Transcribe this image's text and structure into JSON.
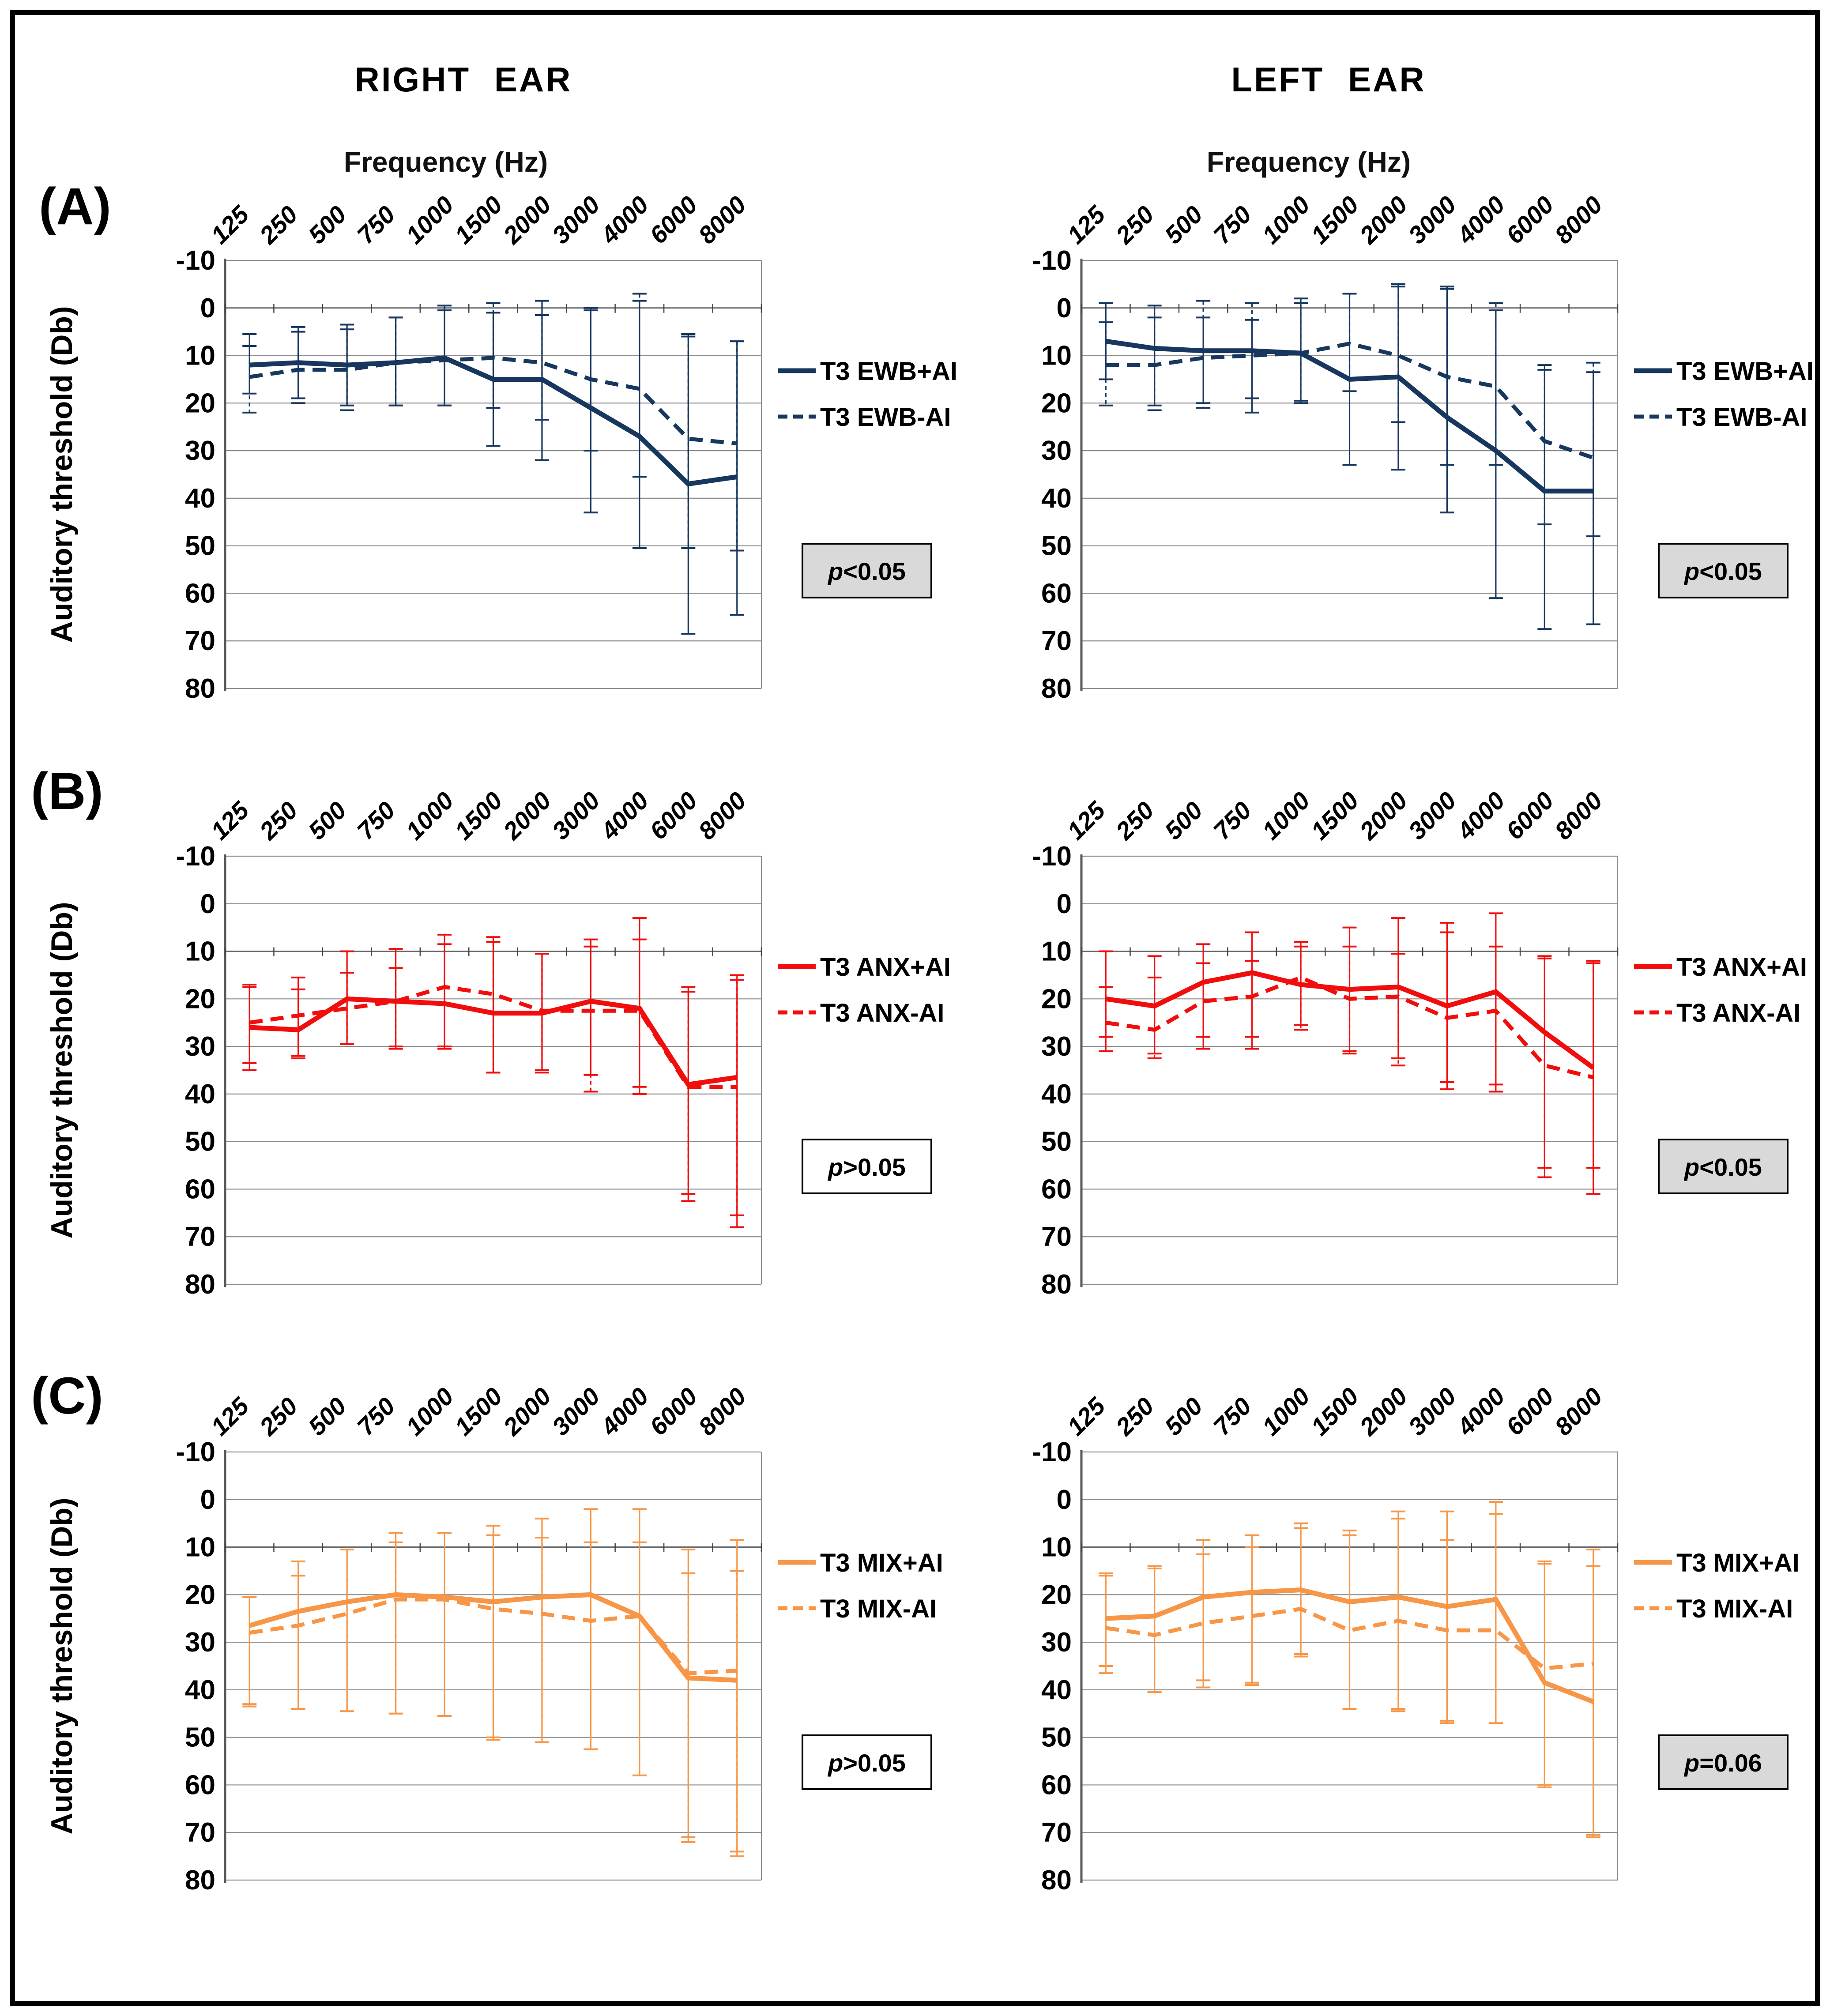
{
  "header": {
    "right_title": "RIGHT EAR",
    "left_title": "LEFT EAR"
  },
  "panel_labels": [
    "(A)",
    "(B)",
    "(C)"
  ],
  "colors": {
    "navy": "#17375E",
    "red": "#F20D0D",
    "orange": "#F79646",
    "grid": "#8C8C8C",
    "axis": "#595959",
    "pbox_shaded": "#D9D9D9",
    "pbox_plain": "#FFFFFF",
    "text": "#000000"
  },
  "chart_data": {
    "type": "line",
    "x_title": "Frequency (Hz)",
    "y_title": "Auditory threshold (Db)",
    "x_categories": [
      "125",
      "250",
      "500",
      "750",
      "1000",
      "1500",
      "2000",
      "3000",
      "4000",
      "6000",
      "8000"
    ],
    "y_ticks": [
      -10,
      0,
      10,
      20,
      30,
      40,
      50,
      60,
      70,
      80
    ],
    "ylim": [
      -10,
      80
    ],
    "y_axis_inverted": true,
    "grid": true,
    "legend_position": "right",
    "panels": [
      {
        "id": "a-right",
        "row": "A",
        "ear": "right",
        "color_key": "navy",
        "axis_cross": 0,
        "p_value": {
          "prefix": "p",
          "text": "<0.05",
          "shaded": true
        },
        "series": [
          {
            "name": "T3 EWB+AI",
            "line": "solid",
            "values": [
              12,
              11.5,
              12,
              11.5,
              10.5,
              15,
              15,
              21,
              27,
              37,
              35.5
            ],
            "err_low": [
              5.5,
              4,
              4.5,
              2,
              0.5,
              1,
              -1.5,
              0,
              -1.5,
              5.5,
              7
            ],
            "err_high": [
              18,
              19,
              20.5,
              20.5,
              20.5,
              29,
              32,
              43,
              50.5,
              68.5,
              64.5
            ]
          },
          {
            "name": "T3 EWB-AI",
            "line": "dashed",
            "values": [
              14.5,
              13,
              13,
              11.5,
              11,
              10.5,
              11.5,
              15,
              17,
              27.5,
              28.5
            ],
            "err_low": [
              8,
              5,
              3.5,
              2,
              -0.5,
              -1,
              1.5,
              0.5,
              -3,
              6,
              7
            ],
            "err_high": [
              22,
              20,
              21.5,
              20.5,
              20.5,
              21,
              23.5,
              30,
              35.5,
              50.5,
              51
            ]
          }
        ]
      },
      {
        "id": "a-left",
        "row": "A",
        "ear": "left",
        "color_key": "navy",
        "axis_cross": 0,
        "p_value": {
          "prefix": "p",
          "text": "<0.05",
          "shaded": true
        },
        "series": [
          {
            "name": "T3 EWB+AI",
            "line": "solid",
            "values": [
              7,
              8.5,
              9,
              9,
              9.5,
              15,
              14.5,
              23,
              30,
              38.5,
              38.5
            ],
            "err_low": [
              -1,
              -0.5,
              2,
              2.5,
              -1,
              -3,
              -5,
              -4,
              0.5,
              13,
              13.5
            ],
            "err_high": [
              15,
              20.5,
              20,
              22,
              20,
              33,
              34,
              43,
              61,
              67.5,
              66.5
            ]
          },
          {
            "name": "T3 EWB-AI",
            "line": "dashed",
            "values": [
              12,
              12,
              10.5,
              10,
              9.5,
              7.5,
              10,
              14.5,
              16.5,
              28,
              31.5
            ],
            "err_low": [
              3,
              2,
              -1.5,
              -1,
              -2,
              -3,
              -4.5,
              -4.5,
              -1,
              12,
              11.5
            ],
            "err_high": [
              20.5,
              21.5,
              21,
              19,
              19.5,
              17.5,
              24,
              33,
              33,
              45.5,
              48
            ]
          }
        ]
      },
      {
        "id": "b-right",
        "row": "B",
        "ear": "right",
        "color_key": "red",
        "axis_cross": 10,
        "p_value": {
          "prefix": "p",
          "text": ">0.05",
          "shaded": false
        },
        "series": [
          {
            "name": "T3 ANX+AI",
            "line": "solid",
            "values": [
              26,
              26.5,
              20,
              20.5,
              21,
              23,
              23,
              20.5,
              22,
              38,
              36.5
            ],
            "err_low": [
              17,
              15.5,
              10,
              9.5,
              6.5,
              7,
              10.5,
              7.5,
              3,
              17.5,
              15
            ],
            "err_high": [
              35,
              32,
              29.5,
              30,
              30.5,
              35.5,
              35,
              36,
              40,
              62.5,
              68
            ]
          },
          {
            "name": "T3 ANX-AI",
            "line": "dashed",
            "values": [
              25,
              23.5,
              22,
              20.5,
              17.5,
              19,
              22.5,
              22.5,
              22.5,
              38.5,
              38.5
            ],
            "err_low": [
              17.5,
              18,
              14.5,
              13.5,
              8.5,
              8,
              10.5,
              9,
              7.5,
              18.5,
              16
            ],
            "err_high": [
              33.5,
              32.5,
              29.5,
              30.5,
              30,
              35.5,
              35.5,
              39.5,
              38.5,
              61,
              65.5
            ]
          }
        ]
      },
      {
        "id": "b-left",
        "row": "B",
        "ear": "left",
        "color_key": "red",
        "axis_cross": 10,
        "p_value": {
          "prefix": "p",
          "text": "<0.05",
          "shaded": true
        },
        "series": [
          {
            "name": "T3 ANX+AI",
            "line": "solid",
            "values": [
              20,
              21.5,
              16.5,
              14.5,
              17,
              18,
              17.5,
              21.5,
              18.5,
              27,
              34.5
            ],
            "err_low": [
              10,
              11,
              8.5,
              6,
              8,
              5,
              3,
              4,
              2,
              11,
              12
            ],
            "err_high": [
              31,
              31.5,
              30.5,
              30.5,
              25.5,
              31.5,
              32.5,
              39,
              39.5,
              57.5,
              61
            ]
          },
          {
            "name": "T3 ANX-AI",
            "line": "dashed",
            "values": [
              25,
              26.5,
              20.5,
              19.5,
              15.5,
              20,
              19.5,
              24,
              22.5,
              34,
              36.5
            ],
            "err_low": [
              17.5,
              15.5,
              12.5,
              12,
              9,
              9,
              10.5,
              6,
              9,
              11.5,
              12.5
            ],
            "err_high": [
              28,
              32.5,
              28,
              28,
              26.5,
              31,
              34,
              37.5,
              38,
              55.5,
              55.5
            ]
          }
        ]
      },
      {
        "id": "c-right",
        "row": "C",
        "ear": "right",
        "color_key": "orange",
        "axis_cross": 10,
        "p_value": {
          "prefix": "p",
          "text": ">0.05",
          "shaded": false
        },
        "series": [
          {
            "name": "T3 MIX+AI",
            "line": "solid",
            "values": [
              26.5,
              23.5,
              21.5,
              20,
              20.5,
              21.5,
              20.5,
              20,
              24.5,
              37.5,
              38
            ],
            "err_low": [
              20.5,
              13,
              10.5,
              7,
              7,
              5.5,
              4,
              2,
              2,
              10.5,
              8.5
            ],
            "err_high": [
              43,
              44,
              44.5,
              45,
              45.5,
              50.5,
              51,
              52.5,
              58,
              72,
              75
            ]
          },
          {
            "name": "T3 MIX-AI",
            "line": "dashed",
            "values": [
              28,
              26.5,
              24,
              21,
              21,
              23,
              24,
              25.5,
              24.5,
              36.5,
              36
            ],
            "err_low": [
              20.5,
              16,
              10.5,
              9,
              7,
              7.5,
              8,
              9,
              9,
              15.5,
              15
            ],
            "err_high": [
              43.5,
              44,
              44.5,
              45,
              45.5,
              50,
              51,
              52.5,
              58,
              71,
              74
            ]
          }
        ]
      },
      {
        "id": "c-left",
        "row": "C",
        "ear": "left",
        "color_key": "orange",
        "axis_cross": 10,
        "p_value": {
          "prefix": "p",
          "text": "=0.06",
          "shaded": true
        },
        "series": [
          {
            "name": "T3 MIX+AI",
            "line": "solid",
            "values": [
              25,
              24.5,
              20.5,
              19.5,
              19,
              21.5,
              20.5,
              22.5,
              21,
              38.5,
              42.5
            ],
            "err_low": [
              16,
              14,
              8.5,
              7.5,
              6,
              6.5,
              2.5,
              2.5,
              0.5,
              13,
              10.5
            ],
            "err_high": [
              36.5,
              40.5,
              39.5,
              39,
              33,
              44,
              44.5,
              47,
              47,
              60.5,
              71
            ]
          },
          {
            "name": "T3 MIX-AI",
            "line": "dashed",
            "values": [
              27,
              28.5,
              26,
              24.5,
              23,
              27.5,
              25.5,
              27.5,
              27.5,
              35.5,
              34.5
            ],
            "err_low": [
              15.5,
              14.5,
              11.5,
              10,
              5,
              7.5,
              4,
              8.5,
              3,
              13.5,
              14
            ],
            "err_high": [
              35,
              40.5,
              38,
              38.5,
              32.5,
              44,
              44,
              46.5,
              47,
              60,
              70.5
            ]
          }
        ]
      }
    ]
  }
}
